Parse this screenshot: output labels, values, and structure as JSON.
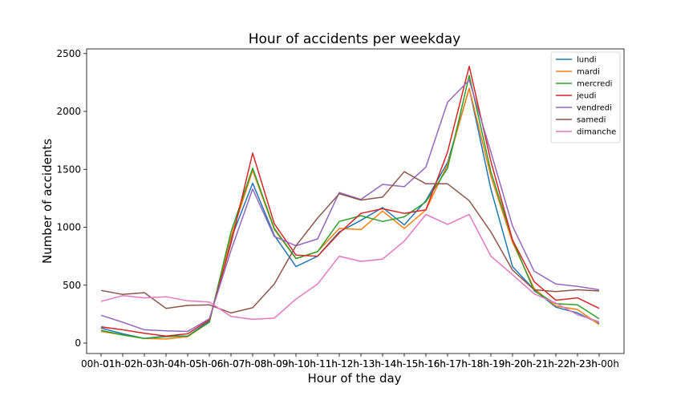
{
  "chart_data": {
    "type": "line",
    "title": "Hour of accidents per weekday",
    "xlabel": "Hour of the day",
    "ylabel": "Number of accidents",
    "categories": [
      "00h-01h",
      "01h-02h",
      "02h-03h",
      "03h-04h",
      "04h-05h",
      "05h-06h",
      "06h-07h",
      "07h-08h",
      "08h-09h",
      "09h-10h",
      "10h-11h",
      "11h-12h",
      "12h-13h",
      "13h-14h",
      "14h-15h",
      "15h-16h",
      "16h-17h",
      "17h-18h",
      "18h-19h",
      "19h-20h",
      "20h-21h",
      "21h-22h",
      "22h-23h",
      "23h-00h"
    ],
    "ylim": [
      -90,
      2540
    ],
    "yticks": [
      0,
      500,
      1000,
      1500,
      2000,
      2500
    ],
    "ytick_labels": [
      "0",
      "500",
      "1000",
      "1500",
      "2000",
      "2500"
    ],
    "grid": false,
    "legend_position": "top-right",
    "series": [
      {
        "name": "lundi",
        "color": "#1f77b4",
        "values": [
          130,
          80,
          40,
          60,
          60,
          190,
          900,
          1380,
          930,
          660,
          750,
          960,
          1060,
          1170,
          1020,
          1230,
          1560,
          2200,
          1330,
          660,
          460,
          310,
          260,
          170
        ]
      },
      {
        "name": "mardi",
        "color": "#ff7f0e",
        "values": [
          100,
          70,
          40,
          35,
          55,
          180,
          920,
          1490,
          980,
          730,
          790,
          990,
          980,
          1140,
          990,
          1150,
          1540,
          2200,
          1440,
          870,
          470,
          320,
          290,
          160
        ]
      },
      {
        "name": "mercredi",
        "color": "#2ca02c",
        "values": [
          110,
          70,
          40,
          55,
          60,
          180,
          960,
          1510,
          990,
          730,
          790,
          1050,
          1100,
          1050,
          1090,
          1220,
          1510,
          2310,
          1480,
          890,
          450,
          340,
          330,
          210
        ]
      },
      {
        "name": "jeudi",
        "color": "#d62728",
        "values": [
          140,
          115,
          85,
          60,
          80,
          200,
          860,
          1640,
          1030,
          760,
          750,
          950,
          1120,
          1160,
          1120,
          1150,
          1650,
          2390,
          1570,
          890,
          530,
          370,
          390,
          300
        ]
      },
      {
        "name": "vendredi",
        "color": "#9467bd",
        "values": [
          240,
          180,
          115,
          105,
          100,
          210,
          800,
          1330,
          920,
          840,
          900,
          1300,
          1240,
          1370,
          1350,
          1520,
          2080,
          2270,
          1650,
          1010,
          620,
          510,
          490,
          460
        ]
      },
      {
        "name": "samedi",
        "color": "#8c564b",
        "values": [
          455,
          420,
          435,
          300,
          325,
          330,
          260,
          305,
          510,
          840,
          1080,
          1290,
          1235,
          1260,
          1480,
          1375,
          1375,
          1230,
          960,
          630,
          460,
          445,
          460,
          450
        ]
      },
      {
        "name": "dimanche",
        "color": "#e377c2",
        "values": [
          360,
          410,
          390,
          400,
          365,
          355,
          230,
          205,
          215,
          380,
          510,
          750,
          705,
          725,
          880,
          1110,
          1025,
          1110,
          750,
          590,
          425,
          345,
          245,
          185
        ]
      }
    ]
  }
}
